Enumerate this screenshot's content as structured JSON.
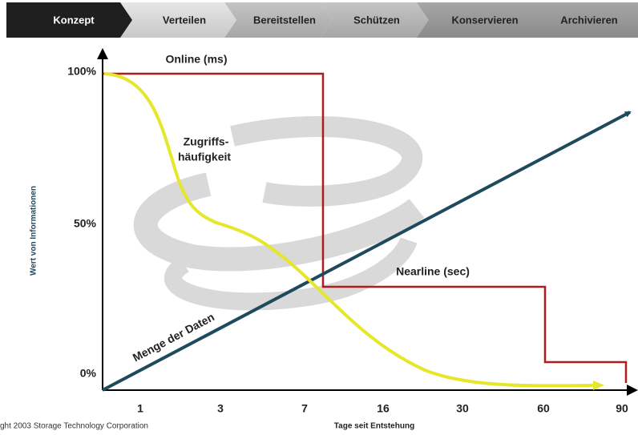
{
  "header": {
    "stages": [
      "Konzept",
      "Verteilen",
      "Bereitstellen",
      "Schützen",
      "Konservieren",
      "Archivieren"
    ]
  },
  "diagram": {
    "y_axis_title": "Wert von Informationen",
    "y_labels": [
      "100%",
      "50%",
      "0%"
    ],
    "x_axis_title": "Tage seit Entstehung",
    "x_labels": [
      "1",
      "3",
      "7",
      "16",
      "30",
      "60",
      "90"
    ],
    "annotations": {
      "online": "Online (ms)",
      "access_1": "Zugriffs-",
      "access_2": "häufigkeit",
      "nearline": "Nearline (sec)",
      "data_amount": "Menge der Daten"
    }
  },
  "footer": {
    "copyright": "ght 2003 Storage Technology Corporation"
  }
}
